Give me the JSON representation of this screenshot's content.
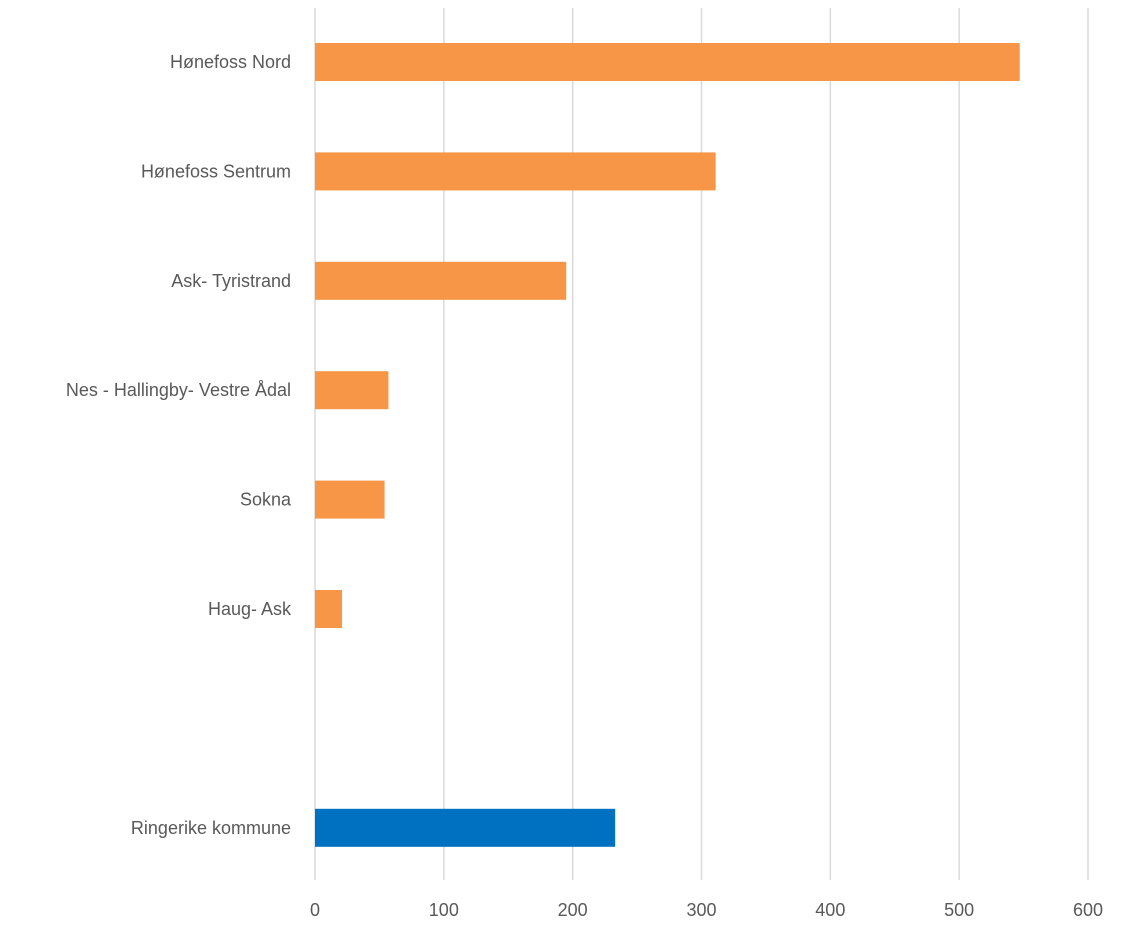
{
  "chart_data": {
    "type": "bar",
    "orientation": "horizontal",
    "categories": [
      "Hønefoss Nord",
      "Hønefoss Sentrum",
      "Ask- Tyristrand",
      "Nes - Hallingby- Vestre Ådal",
      "Sokna",
      "Haug- Ask",
      "",
      "Ringerike kommune"
    ],
    "values": [
      547,
      311,
      195,
      57,
      54,
      21,
      null,
      233
    ],
    "bar_colors": [
      "#F79646",
      "#F79646",
      "#F79646",
      "#F79646",
      "#F79646",
      "#F79646",
      null,
      "#0070C0"
    ],
    "xlim": [
      0,
      600
    ],
    "xticks": [
      0,
      100,
      200,
      300,
      400,
      500,
      600
    ],
    "grid": "vertical",
    "gridline_color": "#D9D9D9",
    "title": "",
    "xlabel": "",
    "ylabel": ""
  }
}
